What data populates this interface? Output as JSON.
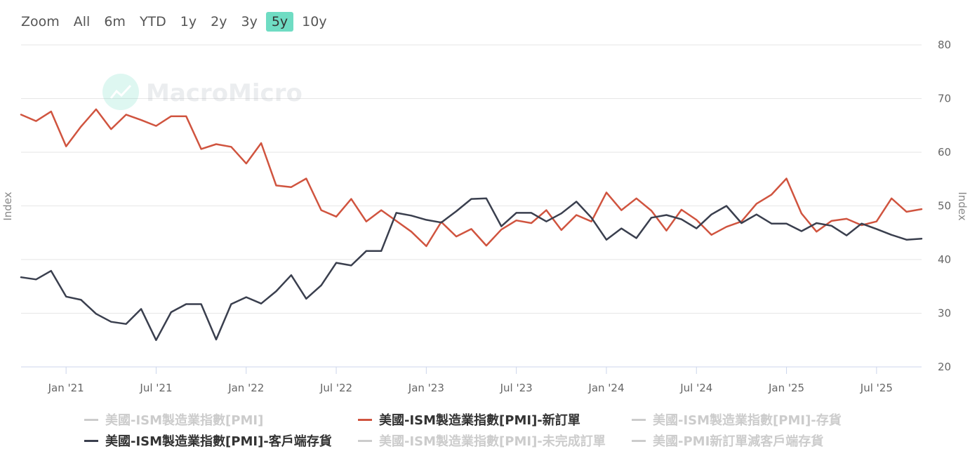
{
  "zoom": {
    "label": "Zoom",
    "options": [
      "All",
      "6m",
      "YTD",
      "1y",
      "2y",
      "3y",
      "5y",
      "10y"
    ],
    "active": "5y",
    "active_color": "#6fdcc3"
  },
  "watermark": "MacroMicro",
  "chart_data": {
    "type": "line",
    "xlabel": "",
    "ylabel_left": "Index",
    "ylabel_right": "Index",
    "ylim": [
      20,
      80
    ],
    "yticks": [
      20,
      30,
      40,
      50,
      60,
      70,
      80
    ],
    "grid": true,
    "legend_position": "bottom",
    "x_tick_labels": [
      "Jan '21",
      "Jul '21",
      "Jan '22",
      "Jul '22",
      "Jan '23",
      "Jul '23",
      "Jan '24",
      "Jul '24",
      "Jan '25",
      "Jul '25"
    ],
    "x": [
      "2020-10",
      "2020-11",
      "2020-12",
      "2021-01",
      "2021-02",
      "2021-03",
      "2021-04",
      "2021-05",
      "2021-06",
      "2021-07",
      "2021-08",
      "2021-09",
      "2021-10",
      "2021-11",
      "2021-12",
      "2022-01",
      "2022-02",
      "2022-03",
      "2022-04",
      "2022-05",
      "2022-06",
      "2022-07",
      "2022-08",
      "2022-09",
      "2022-10",
      "2022-11",
      "2022-12",
      "2023-01",
      "2023-02",
      "2023-03",
      "2023-04",
      "2023-05",
      "2023-06",
      "2023-07",
      "2023-08",
      "2023-09",
      "2023-10",
      "2023-11",
      "2023-12",
      "2024-01",
      "2024-02",
      "2024-03",
      "2024-04",
      "2024-05",
      "2024-06",
      "2024-07",
      "2024-08",
      "2024-09",
      "2024-10",
      "2024-11",
      "2024-12",
      "2025-01",
      "2025-02",
      "2025-03",
      "2025-04",
      "2025-05",
      "2025-06",
      "2025-07",
      "2025-08",
      "2025-09",
      "2025-10"
    ],
    "series": [
      {
        "name": "美國-ISM製造業指數[PMI]-新訂單",
        "color": "#d0543f",
        "values": [
          67.0,
          65.8,
          67.6,
          61.1,
          64.8,
          68.0,
          64.3,
          67.0,
          66.0,
          64.9,
          66.7,
          66.7,
          60.6,
          61.5,
          61.0,
          57.9,
          61.7,
          53.8,
          53.5,
          55.1,
          49.2,
          48.0,
          51.3,
          47.1,
          49.2,
          47.2,
          45.2,
          42.5,
          47.0,
          44.3,
          45.7,
          42.6,
          45.6,
          47.3,
          46.8,
          49.2,
          45.5,
          48.3,
          47.1,
          52.5,
          49.2,
          51.4,
          49.1,
          45.4,
          49.3,
          47.4,
          44.6,
          46.1,
          47.1,
          50.4,
          52.1,
          55.1,
          48.6,
          45.2,
          47.2,
          47.6,
          46.4,
          47.1,
          51.4,
          48.9,
          49.4
        ]
      },
      {
        "name": "美國-ISM製造業指數[PMI]-客戶端存貨",
        "color": "#3a3f4e",
        "values": [
          36.7,
          36.3,
          37.9,
          33.1,
          32.5,
          29.9,
          28.4,
          28.0,
          30.8,
          25.0,
          30.2,
          31.7,
          31.7,
          25.1,
          31.7,
          33.0,
          31.8,
          34.1,
          37.1,
          32.7,
          35.2,
          39.4,
          38.9,
          41.6,
          41.6,
          48.7,
          48.2,
          47.4,
          46.9,
          49.0,
          51.3,
          51.4,
          46.2,
          48.7,
          48.7,
          47.1,
          48.6,
          50.8,
          47.8,
          43.7,
          45.8,
          44.0,
          47.8,
          48.3,
          47.5,
          45.8,
          48.4,
          50.0,
          46.8,
          48.4,
          46.7,
          46.7,
          45.3,
          46.8,
          46.3,
          44.5,
          46.7,
          45.7,
          44.6,
          43.7,
          43.9
        ]
      }
    ]
  },
  "legend": [
    {
      "label": "美國-ISM製造業指數[PMI]",
      "color": "#cccccc",
      "hidden": true
    },
    {
      "label": "美國-ISM製造業指數[PMI]-新訂單",
      "color": "#d0543f",
      "hidden": false
    },
    {
      "label": "美國-ISM製造業指數[PMI]-存貨",
      "color": "#cccccc",
      "hidden": true
    },
    {
      "label": "美國-ISM製造業指數[PMI]-客戶端存貨",
      "color": "#3a3f4e",
      "hidden": false
    },
    {
      "label": "美國-ISM製造業指數[PMI]-未完成訂單",
      "color": "#cccccc",
      "hidden": true
    },
    {
      "label": "美國-PMI新訂單減客戶端存貨",
      "color": "#cccccc",
      "hidden": true
    }
  ]
}
